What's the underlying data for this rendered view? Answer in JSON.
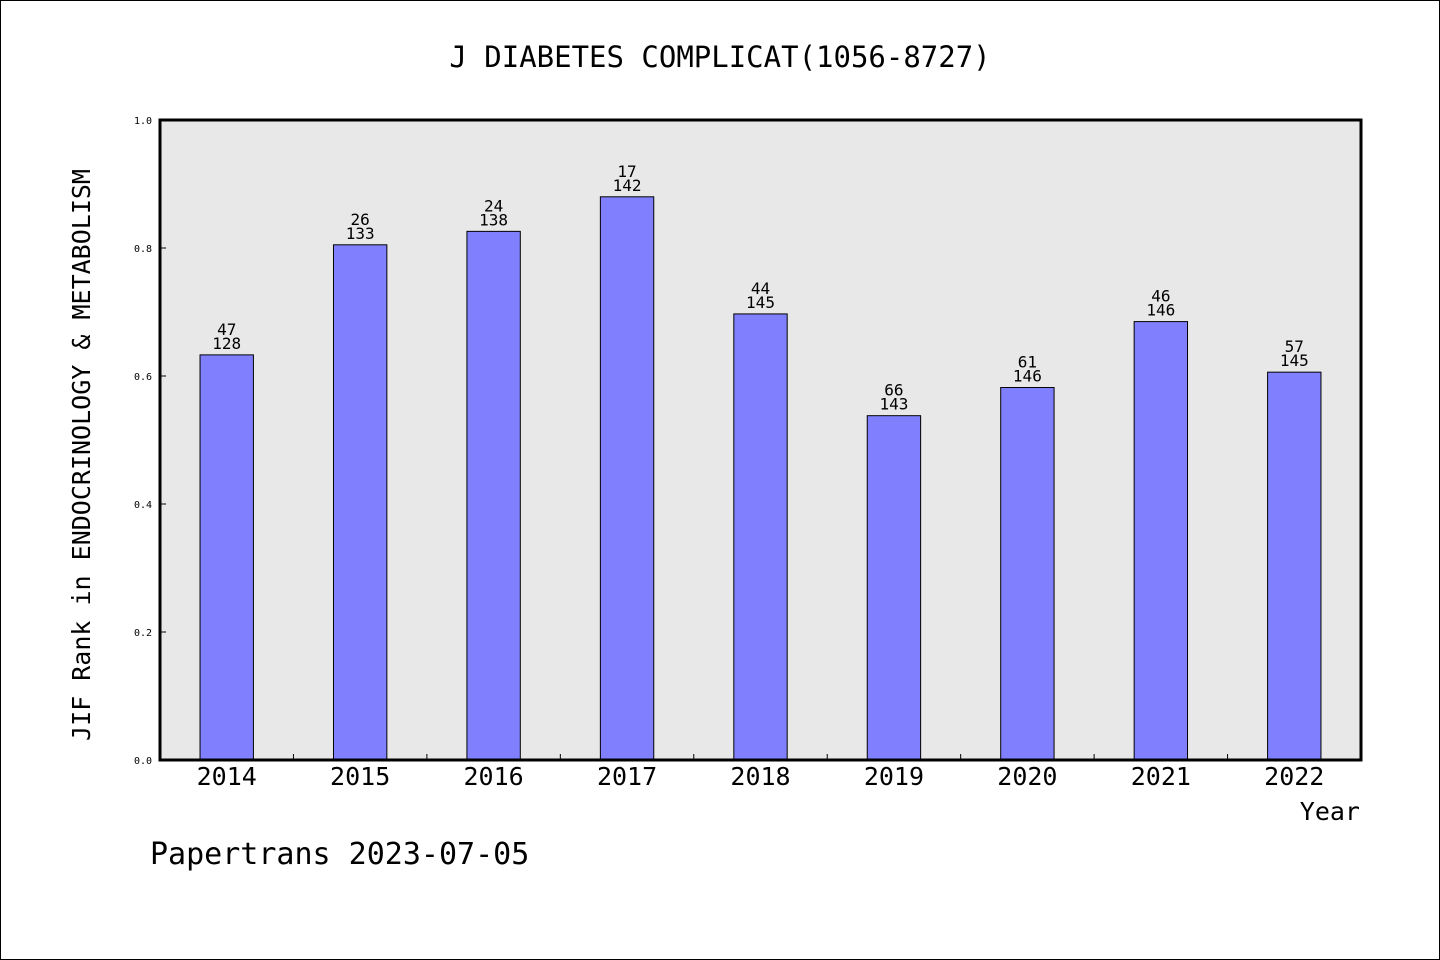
{
  "chart_data": {
    "type": "bar",
    "title": "J DIABETES COMPLICAT(1056-8727)",
    "xlabel": "Year",
    "ylabel": "JIF Rank in ENDOCRINOLOGY & METABOLISM",
    "ylim": [
      0,
      1.0
    ],
    "yticks": [
      "0.0",
      "0.2",
      "0.4",
      "0.6",
      "0.8",
      "1.0"
    ],
    "categories": [
      "2014",
      "2015",
      "2016",
      "2017",
      "2018",
      "2019",
      "2020",
      "2021",
      "2022"
    ],
    "values": [
      0.633,
      0.805,
      0.826,
      0.88,
      0.697,
      0.538,
      0.582,
      0.685,
      0.606
    ],
    "rank": [
      "47",
      "26",
      "24",
      "17",
      "44",
      "66",
      "61",
      "46",
      "57"
    ],
    "total": [
      "128",
      "133",
      "138",
      "142",
      "145",
      "143",
      "146",
      "146",
      "145"
    ],
    "grid": false,
    "bar_color": "#8080ff",
    "plot_background": "#e8e8e8"
  },
  "footer": {
    "watermark": "Papertrans 2023-07-05"
  }
}
